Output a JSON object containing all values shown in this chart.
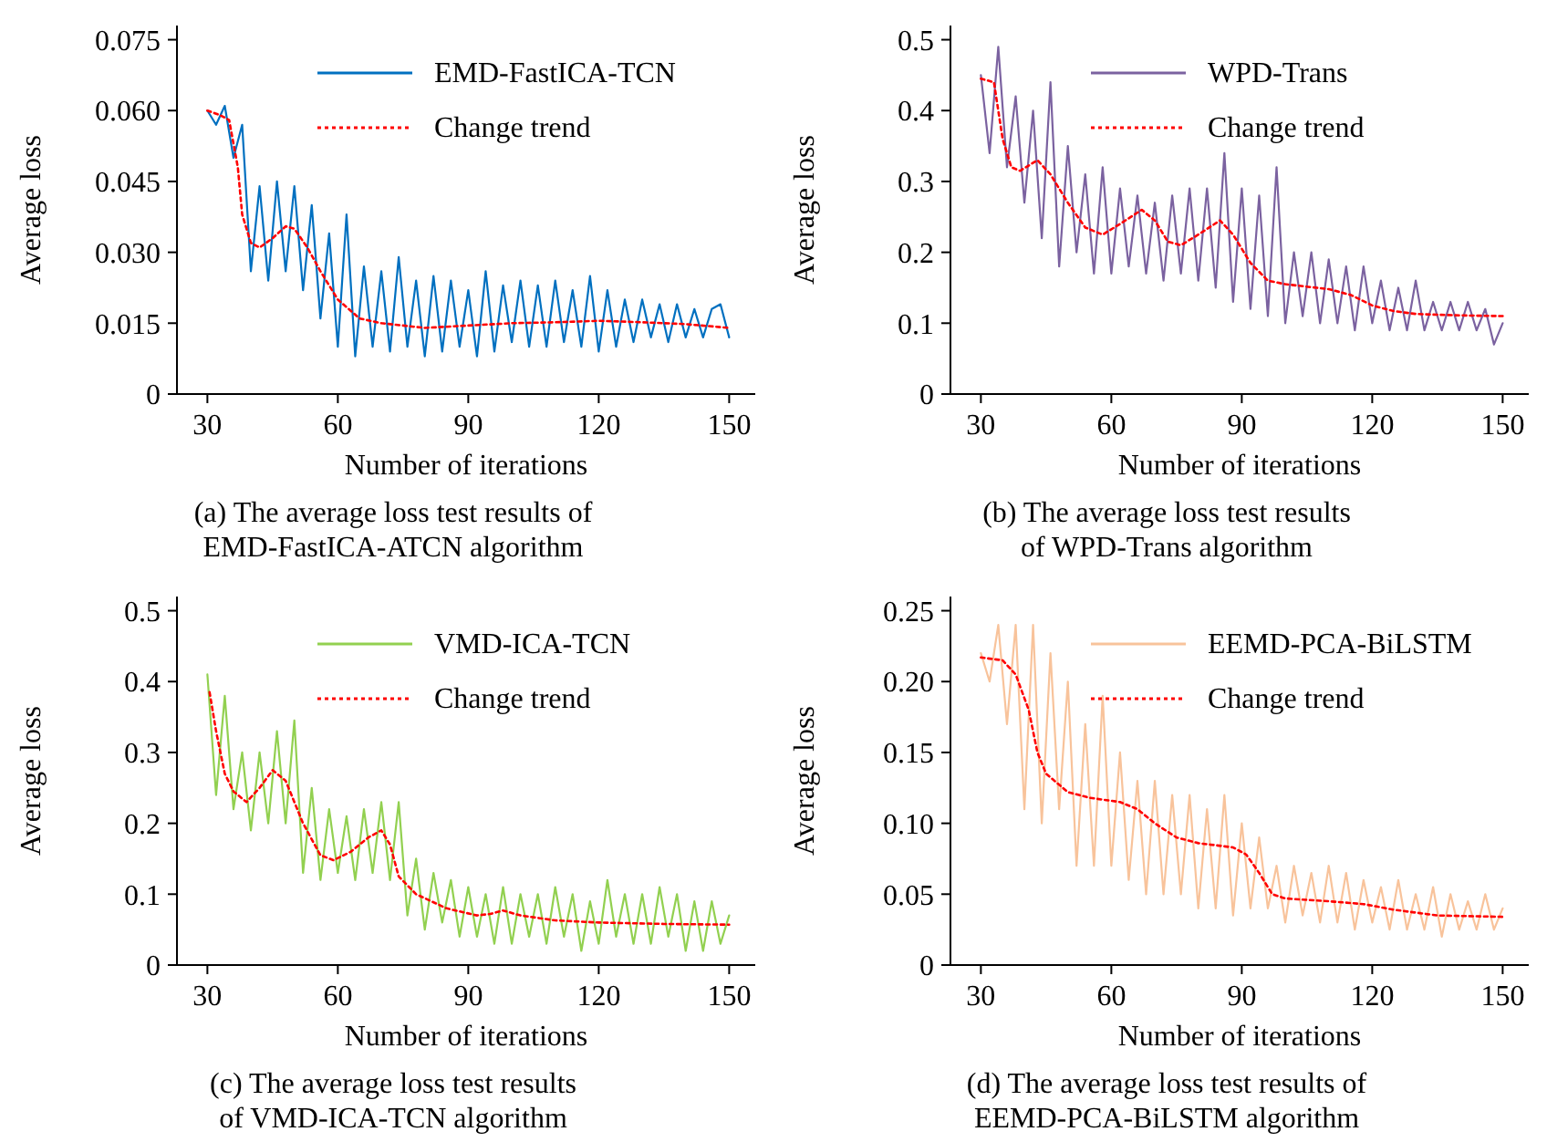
{
  "chart_data": [
    {
      "type": "line",
      "title": "(a) The average loss test results of\nEMD-FastICA-ATCN algorithm",
      "xlabel": "Number of iterations",
      "ylabel": "Average loss",
      "legend": "top right",
      "xlim": [
        23,
        156
      ],
      "ylim": [
        0,
        0.078
      ],
      "xticks": [
        30,
        60,
        90,
        120,
        150
      ],
      "yticks": [
        0,
        {
          "value": 0.015,
          "label": "0.015"
        },
        {
          "value": 0.03,
          "label": "0.030"
        },
        {
          "value": 0.045,
          "label": "0.045"
        },
        {
          "value": 0.06,
          "label": "0.060"
        },
        {
          "value": 0.075,
          "label": "0.075"
        }
      ],
      "x": [
        30,
        32,
        34,
        36,
        38,
        40,
        42,
        44,
        46,
        48,
        50,
        52,
        54,
        56,
        58,
        60,
        62,
        64,
        66,
        68,
        70,
        72,
        74,
        76,
        78,
        80,
        82,
        84,
        86,
        88,
        90,
        92,
        94,
        96,
        98,
        100,
        102,
        104,
        106,
        108,
        110,
        112,
        114,
        116,
        118,
        120,
        122,
        124,
        126,
        128,
        130,
        132,
        134,
        136,
        138,
        140,
        142,
        144,
        146,
        148,
        150
      ],
      "series": [
        {
          "name": "EMD-FastICA-TCN",
          "color": "#0070c0",
          "values": [
            0.06,
            0.057,
            0.061,
            0.05,
            0.057,
            0.026,
            0.044,
            0.024,
            0.045,
            0.026,
            0.044,
            0.022,
            0.04,
            0.016,
            0.034,
            0.01,
            0.038,
            0.008,
            0.027,
            0.01,
            0.026,
            0.009,
            0.029,
            0.01,
            0.024,
            0.008,
            0.025,
            0.009,
            0.024,
            0.01,
            0.022,
            0.008,
            0.026,
            0.009,
            0.023,
            0.011,
            0.024,
            0.01,
            0.023,
            0.01,
            0.024,
            0.011,
            0.022,
            0.01,
            0.025,
            0.009,
            0.022,
            0.01,
            0.02,
            0.011,
            0.02,
            0.012,
            0.019,
            0.011,
            0.019,
            0.012,
            0.018,
            0.012,
            0.018,
            0.019,
            0.012
          ]
        },
        {
          "name": "Change trend",
          "type": "line",
          "color": "#ff0000",
          "line_style": "dotted",
          "x": [
            30,
            33,
            35,
            37,
            38,
            40,
            42,
            45,
            48,
            50,
            53,
            56,
            60,
            65,
            70,
            80,
            90,
            100,
            110,
            120,
            130,
            140,
            150
          ],
          "values": [
            0.06,
            0.059,
            0.058,
            0.048,
            0.038,
            0.032,
            0.031,
            0.033,
            0.0355,
            0.035,
            0.031,
            0.026,
            0.02,
            0.016,
            0.015,
            0.014,
            0.0145,
            0.015,
            0.0152,
            0.0155,
            0.0152,
            0.0148,
            0.014
          ]
        }
      ]
    },
    {
      "type": "line",
      "title": "(b) The average loss test results\nof WPD-Trans algorithm",
      "xlabel": "Number of iterations",
      "ylabel": "Average loss",
      "legend": "top right",
      "xlim": [
        23,
        156
      ],
      "ylim": [
        0,
        0.52
      ],
      "xticks": [
        30,
        60,
        90,
        120,
        150
      ],
      "yticks": [
        0,
        0.1,
        0.2,
        0.3,
        0.4,
        0.5
      ],
      "x": [
        30,
        32,
        34,
        36,
        38,
        40,
        42,
        44,
        46,
        48,
        50,
        52,
        54,
        56,
        58,
        60,
        62,
        64,
        66,
        68,
        70,
        72,
        74,
        76,
        78,
        80,
        82,
        84,
        86,
        88,
        90,
        92,
        94,
        96,
        98,
        100,
        102,
        104,
        106,
        108,
        110,
        112,
        114,
        116,
        118,
        120,
        122,
        124,
        126,
        128,
        130,
        132,
        134,
        136,
        138,
        140,
        142,
        144,
        146,
        148,
        150
      ],
      "series": [
        {
          "name": "WPD-Trans",
          "color": "#7b62a0",
          "values": [
            0.45,
            0.34,
            0.49,
            0.32,
            0.42,
            0.27,
            0.4,
            0.22,
            0.44,
            0.18,
            0.35,
            0.2,
            0.31,
            0.17,
            0.32,
            0.17,
            0.29,
            0.18,
            0.28,
            0.17,
            0.27,
            0.16,
            0.28,
            0.17,
            0.29,
            0.16,
            0.29,
            0.15,
            0.34,
            0.13,
            0.29,
            0.12,
            0.28,
            0.11,
            0.32,
            0.1,
            0.2,
            0.11,
            0.2,
            0.1,
            0.19,
            0.1,
            0.18,
            0.09,
            0.18,
            0.1,
            0.16,
            0.09,
            0.15,
            0.09,
            0.16,
            0.09,
            0.13,
            0.09,
            0.13,
            0.09,
            0.13,
            0.09,
            0.12,
            0.07,
            0.1
          ]
        },
        {
          "name": "Change trend",
          "type": "line",
          "color": "#ff0000",
          "line_style": "dotted",
          "x": [
            30,
            33,
            35,
            37,
            39,
            43,
            46,
            50,
            54,
            58,
            62,
            67,
            70,
            73,
            76,
            80,
            85,
            88,
            92,
            96,
            100,
            110,
            115,
            120,
            125,
            130,
            140,
            150
          ],
          "values": [
            0.445,
            0.44,
            0.36,
            0.32,
            0.315,
            0.33,
            0.31,
            0.27,
            0.235,
            0.225,
            0.24,
            0.26,
            0.245,
            0.215,
            0.21,
            0.225,
            0.245,
            0.225,
            0.185,
            0.16,
            0.155,
            0.148,
            0.14,
            0.125,
            0.117,
            0.113,
            0.111,
            0.11
          ]
        }
      ]
    },
    {
      "type": "line",
      "title": "(c) The average loss test results\nof VMD-ICA-TCN algorithm",
      "xlabel": "Number of iterations",
      "ylabel": "Average loss",
      "legend": "top right",
      "xlim": [
        23,
        156
      ],
      "ylim": [
        0,
        0.52
      ],
      "xticks": [
        30,
        60,
        90,
        120,
        150
      ],
      "yticks": [
        0,
        0.1,
        0.2,
        0.3,
        0.4,
        0.5
      ],
      "x": [
        30,
        32,
        34,
        36,
        38,
        40,
        42,
        44,
        46,
        48,
        50,
        52,
        54,
        56,
        58,
        60,
        62,
        64,
        66,
        68,
        70,
        72,
        74,
        76,
        78,
        80,
        82,
        84,
        86,
        88,
        90,
        92,
        94,
        96,
        98,
        100,
        102,
        104,
        106,
        108,
        110,
        112,
        114,
        116,
        118,
        120,
        122,
        124,
        126,
        128,
        130,
        132,
        134,
        136,
        138,
        140,
        142,
        144,
        146,
        148,
        150
      ],
      "series": [
        {
          "name": "VMD-ICA-TCN",
          "color": "#92d050",
          "values": [
            0.41,
            0.24,
            0.38,
            0.22,
            0.3,
            0.19,
            0.3,
            0.2,
            0.33,
            0.2,
            0.345,
            0.13,
            0.25,
            0.12,
            0.22,
            0.13,
            0.21,
            0.12,
            0.22,
            0.13,
            0.23,
            0.12,
            0.23,
            0.07,
            0.15,
            0.05,
            0.13,
            0.06,
            0.12,
            0.04,
            0.11,
            0.04,
            0.1,
            0.03,
            0.11,
            0.03,
            0.1,
            0.04,
            0.1,
            0.03,
            0.11,
            0.04,
            0.1,
            0.02,
            0.09,
            0.03,
            0.12,
            0.04,
            0.1,
            0.03,
            0.1,
            0.03,
            0.11,
            0.04,
            0.1,
            0.02,
            0.09,
            0.02,
            0.09,
            0.03,
            0.07
          ]
        },
        {
          "name": "Change trend",
          "type": "line",
          "color": "#ff0000",
          "line_style": "dotted",
          "x": [
            30.5,
            32,
            34,
            36,
            39,
            42,
            45,
            48,
            52,
            56,
            59,
            63,
            67,
            70,
            72,
            74,
            78,
            85,
            92,
            95,
            98,
            102,
            110,
            120,
            135,
            150
          ],
          "values": [
            0.385,
            0.33,
            0.27,
            0.245,
            0.23,
            0.25,
            0.275,
            0.26,
            0.2,
            0.155,
            0.148,
            0.16,
            0.18,
            0.19,
            0.17,
            0.125,
            0.1,
            0.08,
            0.07,
            0.072,
            0.077,
            0.07,
            0.063,
            0.06,
            0.058,
            0.057
          ]
        }
      ]
    },
    {
      "type": "line",
      "title": "(d) The average loss test results of\nEEMD-PCA-BiLSTM algorithm",
      "xlabel": "Number of iterations",
      "ylabel": "Average loss",
      "legend": "top right",
      "xlim": [
        23,
        156
      ],
      "ylim": [
        0,
        0.26
      ],
      "xticks": [
        30,
        60,
        90,
        120,
        150
      ],
      "yticks": [
        0,
        {
          "value": 0.05,
          "label": "0.05"
        },
        {
          "value": 0.1,
          "label": "0.10"
        },
        {
          "value": 0.15,
          "label": "0.15"
        },
        {
          "value": 0.2,
          "label": "0.20"
        },
        {
          "value": 0.25,
          "label": "0.25"
        }
      ],
      "x": [
        30,
        32,
        34,
        36,
        38,
        40,
        42,
        44,
        46,
        48,
        50,
        52,
        54,
        56,
        58,
        60,
        62,
        64,
        66,
        68,
        70,
        72,
        74,
        76,
        78,
        80,
        82,
        84,
        86,
        88,
        90,
        92,
        94,
        96,
        98,
        100,
        102,
        104,
        106,
        108,
        110,
        112,
        114,
        116,
        118,
        120,
        122,
        124,
        126,
        128,
        130,
        132,
        134,
        136,
        138,
        140,
        142,
        144,
        146,
        148,
        150
      ],
      "series": [
        {
          "name": "EEMD-PCA-BiLSTM",
          "color": "#f8c39b",
          "values": [
            0.22,
            0.2,
            0.24,
            0.17,
            0.24,
            0.11,
            0.24,
            0.1,
            0.22,
            0.11,
            0.2,
            0.07,
            0.17,
            0.07,
            0.19,
            0.07,
            0.15,
            0.06,
            0.13,
            0.05,
            0.13,
            0.05,
            0.12,
            0.05,
            0.12,
            0.04,
            0.11,
            0.04,
            0.12,
            0.035,
            0.1,
            0.04,
            0.09,
            0.04,
            0.07,
            0.03,
            0.07,
            0.035,
            0.065,
            0.03,
            0.07,
            0.03,
            0.065,
            0.025,
            0.06,
            0.03,
            0.055,
            0.025,
            0.06,
            0.025,
            0.05,
            0.025,
            0.055,
            0.02,
            0.05,
            0.025,
            0.045,
            0.025,
            0.05,
            0.025,
            0.04
          ]
        },
        {
          "name": "Change trend",
          "type": "line",
          "color": "#ff0000",
          "line_style": "dotted",
          "x": [
            30,
            35,
            38,
            41,
            43,
            45,
            50,
            55,
            62,
            66,
            70,
            75,
            80,
            88,
            91,
            94,
            97,
            100,
            110,
            118,
            125,
            135,
            150
          ],
          "values": [
            0.217,
            0.215,
            0.205,
            0.18,
            0.15,
            0.135,
            0.122,
            0.118,
            0.115,
            0.11,
            0.1,
            0.09,
            0.086,
            0.083,
            0.078,
            0.065,
            0.05,
            0.047,
            0.045,
            0.043,
            0.039,
            0.035,
            0.034
          ]
        }
      ]
    }
  ]
}
